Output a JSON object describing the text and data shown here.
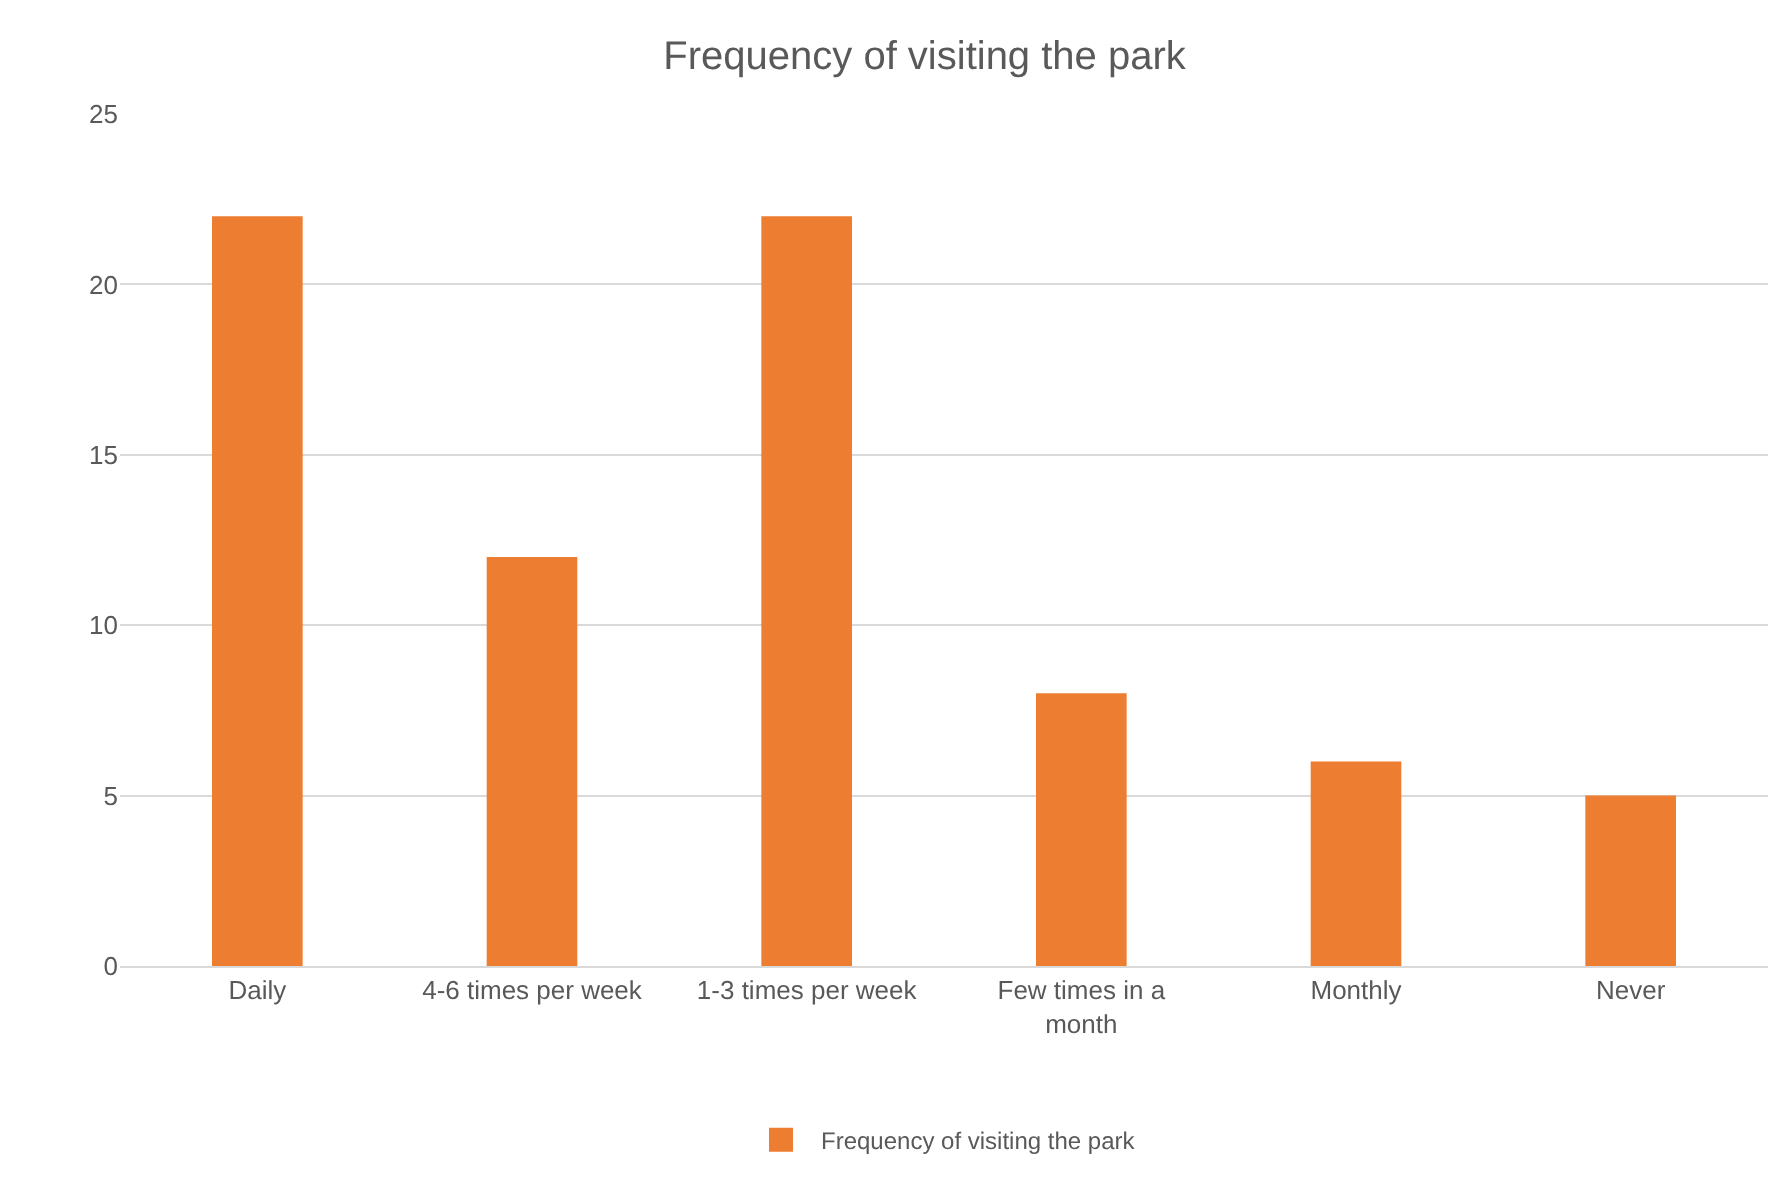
{
  "chart_data": {
    "type": "bar",
    "title": "Frequency of visiting the park",
    "categories": [
      "Daily",
      "4-6 times per week",
      "1-3 times per week",
      "Few times in a month",
      "Monthly",
      "Never"
    ],
    "series": [
      {
        "name": "Frequency of visiting the park",
        "color": "#ed7d31",
        "values": [
          22,
          12,
          22,
          8,
          6,
          5
        ]
      }
    ],
    "ylim": [
      0,
      25
    ],
    "yticks": [
      0,
      5,
      10,
      15,
      20,
      25
    ],
    "grid": "y",
    "legend": "bottom"
  }
}
